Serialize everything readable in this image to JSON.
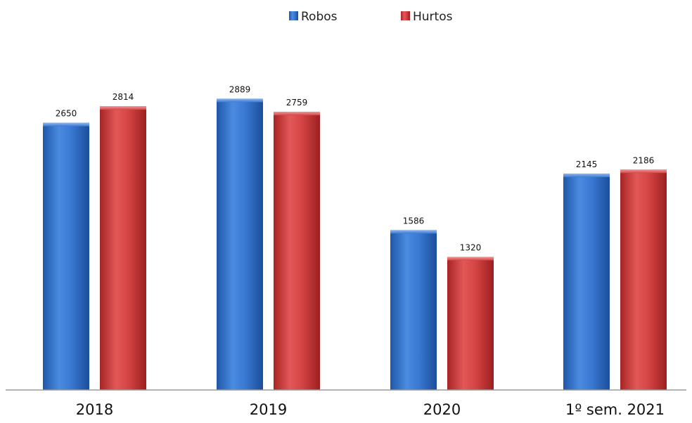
{
  "chart_data": {
    "type": "bar",
    "categories": [
      "2018",
      "2019",
      "2020",
      "1º sem. 2021"
    ],
    "series": [
      {
        "name": "Robos",
        "values": [
          2650,
          2889,
          1586,
          2145
        ],
        "color": "#2E6FC9"
      },
      {
        "name": "Hurtos",
        "values": [
          2814,
          2759,
          1320,
          2186
        ],
        "color": "#D03A3A"
      }
    ],
    "legend_position": "top-center",
    "grid": false,
    "ylim": [
      0,
      3000
    ]
  }
}
